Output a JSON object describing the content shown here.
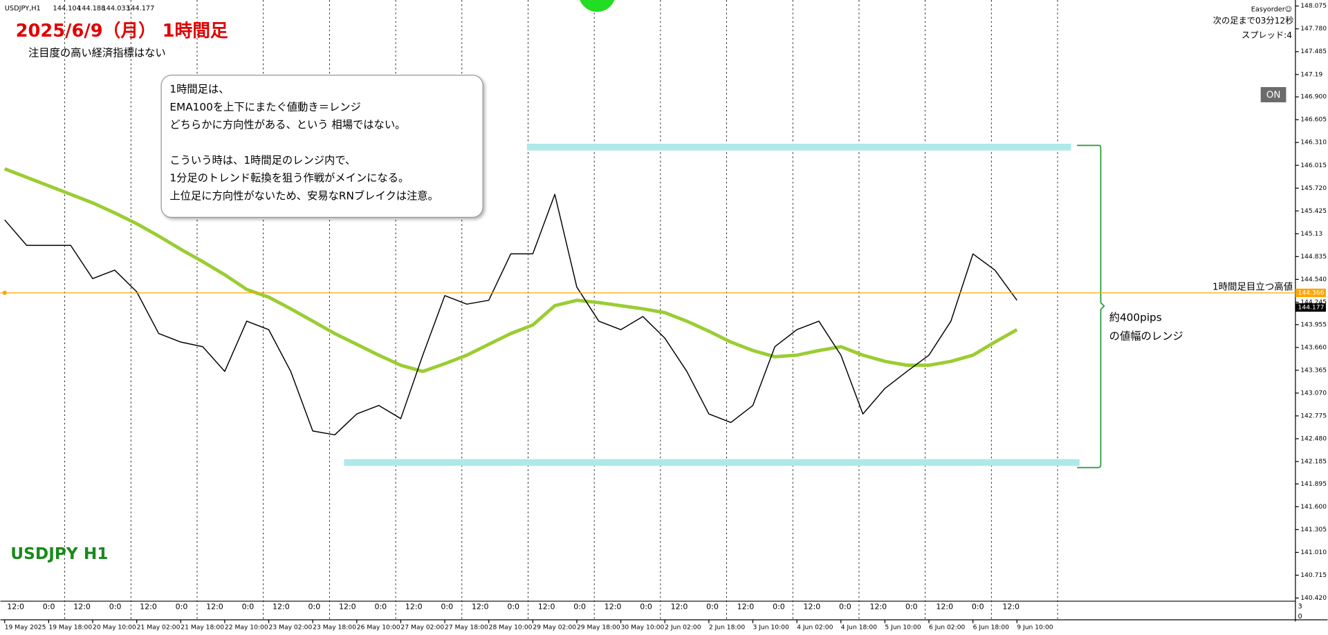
{
  "header": {
    "symbol": "USDJPY,H1",
    "open": 144.104,
    "high": 144.188,
    "low": 144.033,
    "close": 144.177
  },
  "title": "2025/6/9（月） 1時間足",
  "subtitle": "注目度の高い経済指標はない",
  "note": [
    [
      "1時間足は、",
      "EMA100を上下にまたぐ値動き＝レンジ",
      "どちらかに方向性がある、という 相場ではない。"
    ],
    [
      "こういう時は、1時間足のレンジ内で、",
      "1分足のトレンド転換を狙う作戦がメインになる。",
      "上位足に方向性がないため、安易なRNブレイクは注意。"
    ]
  ],
  "range_note": [
    "約400pips",
    "の値幅のレンジ"
  ],
  "watermark": "USDJPY H1",
  "panel": {
    "ea": "Easyorder☺",
    "countdown": "次の足まで03分12秒",
    "spread": "スプレッド:4",
    "button": "ON"
  },
  "chart_data": {
    "type": "line",
    "categories": [
      "19 May 2025",
      null,
      "19 May 18:00",
      null,
      "20 May 10:00",
      null,
      "21 May 02:00",
      null,
      "21 May 18:00",
      null,
      "22 May 10:00",
      null,
      "23 May 02:00",
      null,
      "23 May 18:00",
      null,
      "26 May 10:00",
      null,
      "27 May 02:00",
      null,
      "27 May 18:00",
      null,
      "28 May 10:00",
      null,
      "29 May 02:00",
      null,
      "29 May 18:00",
      null,
      "30 May 10:00",
      null,
      "2 Jun 02:00",
      null,
      "2 Jun 18:00",
      null,
      "3 Jun 10:00",
      null,
      "4 Jun 02:00",
      null,
      "4 Jun 18:00",
      null,
      "5 Jun 10:00",
      null,
      "6 Jun 02:00",
      null,
      "6 Jun 18:00",
      null,
      "9 Jun 10:00"
    ],
    "series": [
      {
        "color": "#000000",
        "width": 1.2,
        "values": [
          145.31,
          144.98,
          144.98,
          144.98,
          144.55,
          144.66,
          144.38,
          143.84,
          143.73,
          143.67,
          143.35,
          144.0,
          143.89,
          143.35,
          142.58,
          142.53,
          142.8,
          142.91,
          142.74,
          143.56,
          144.33,
          144.22,
          144.27,
          144.87,
          144.87,
          145.64,
          144.44,
          144.0,
          143.89,
          144.06,
          143.78,
          143.35,
          142.8,
          142.69,
          142.91,
          143.67,
          143.89,
          144.0,
          143.56,
          142.8,
          143.13,
          143.35,
          143.56,
          144.0,
          144.87,
          144.66,
          144.27
        ]
      },
      {
        "color": "#9acd32",
        "width": 4,
        "values": [
          145.97,
          145.86,
          145.75,
          145.64,
          145.53,
          145.4,
          145.26,
          145.1,
          144.93,
          144.77,
          144.6,
          144.41,
          144.31,
          144.16,
          144.0,
          143.84,
          143.7,
          143.56,
          143.43,
          143.35,
          143.45,
          143.56,
          143.7,
          143.84,
          143.95,
          144.2,
          144.27,
          144.24,
          144.2,
          144.16,
          144.11,
          144.0,
          143.87,
          143.73,
          143.62,
          143.54,
          143.56,
          143.62,
          143.67,
          143.56,
          143.48,
          143.43,
          143.43,
          143.48,
          143.56,
          143.73,
          143.89
        ]
      }
    ],
    "ylim": [
      140.39,
      148.12
    ],
    "yticks": [
      148.075,
      {
        "value": 147.78,
        "label": "147.780"
      },
      147.485,
      147.19,
      {
        "value": 146.9,
        "label": "146.900"
      },
      146.605,
      {
        "value": 146.31,
        "label": "146.310"
      },
      146.015,
      {
        "value": 145.72,
        "label": "145.720"
      },
      145.425,
      145.13,
      144.835,
      {
        "value": 144.54,
        "label": "144.540"
      },
      144.245,
      143.955,
      {
        "value": 143.66,
        "label": "143.660"
      },
      143.365,
      {
        "value": 143.07,
        "label": "143.070"
      },
      142.775,
      {
        "value": 142.48,
        "label": "142.480"
      },
      142.185,
      141.895,
      {
        "value": 141.6,
        "label": "141.600"
      },
      141.305,
      {
        "value": 141.01,
        "label": "141.010"
      },
      140.715,
      {
        "value": 140.42,
        "label": "140.420"
      }
    ],
    "hline": {
      "value": 144.366,
      "label": "1時間足目立つ高値",
      "color": "#ffa500"
    },
    "session_labels": [
      "12:0",
      "0:0",
      "12:0",
      "0:0",
      "12:0",
      "0:0",
      "12:0",
      "0:0",
      "12:0",
      "0:0",
      "12:0",
      "0:0",
      "12:0",
      "0:0",
      "12:0",
      "0:0",
      "12:0",
      "0:0",
      "12:0",
      "0:0",
      "12:0",
      "0:0",
      "12:0",
      "0:0",
      "12:0",
      "0:0",
      "12:0",
      "0:0",
      "12:0",
      "0:0",
      "12:0"
    ],
    "indicator_yticks": [
      3,
      0
    ]
  }
}
